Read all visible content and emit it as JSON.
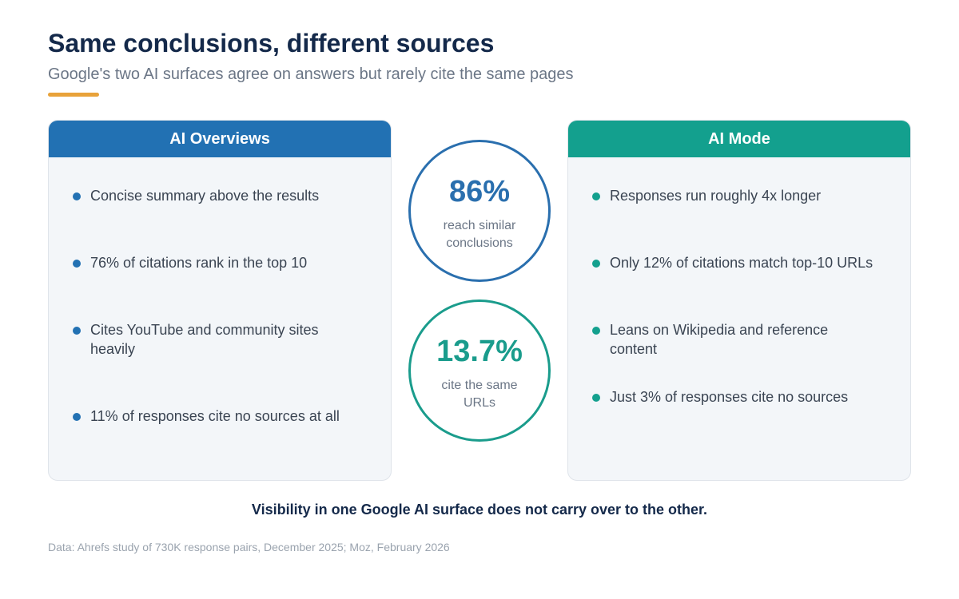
{
  "header": {
    "title": "Same conclusions, different sources",
    "subtitle": "Google's two AI surfaces agree on answers but rarely cite the same pages"
  },
  "left_panel": {
    "title": "AI Overviews",
    "color": "#2271b3",
    "items": [
      "Concise summary above the results",
      "76% of citations rank in the top 10",
      "Cites YouTube and community sites heavily",
      "11% of responses cite no sources at all"
    ]
  },
  "right_panel": {
    "title": "AI Mode",
    "color": "#13a08e",
    "items": [
      "Responses run roughly 4x longer",
      "Only 12% of citations match top-10 URLs",
      "Leans on Wikipedia and reference content",
      "Just 3% of responses cite no sources"
    ]
  },
  "stats": [
    {
      "value": "86%",
      "label": "reach similar conclusions",
      "color": "#2a6fae"
    },
    {
      "value": "13.7%",
      "label": "cite the same URLs",
      "color": "#1a9c8c"
    }
  ],
  "conclusion": "Visibility in one Google AI surface does not carry over to the other.",
  "source": "Data: Ahrefs study of 730K response pairs, December 2025; Moz, February 2026",
  "accent_color": "#e8a23a"
}
